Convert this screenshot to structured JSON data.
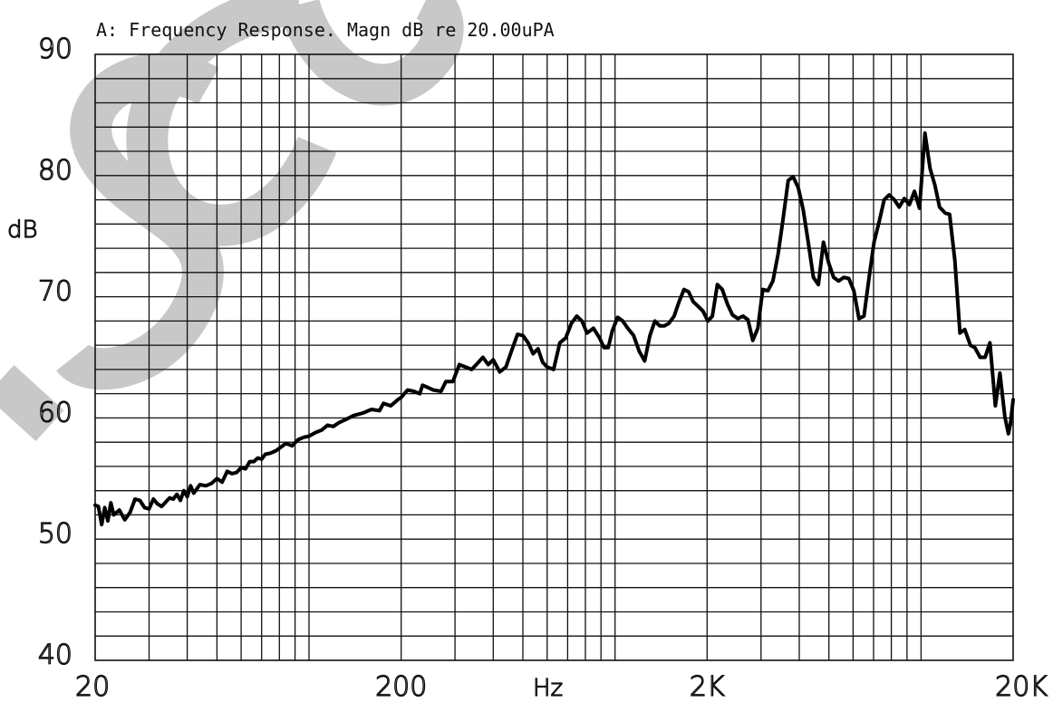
{
  "watermark": {
    "text": "ISCO",
    "color": "#c8c8c8"
  },
  "chart_data": {
    "type": "line",
    "title": "A: Frequency Response. Magn dB re 20.00uPA",
    "xlabel": "Hz",
    "ylabel": "dB",
    "xscale": "log",
    "xlim": [
      20,
      20000
    ],
    "ylim": [
      40,
      90
    ],
    "grid": true,
    "x_ticks": [
      {
        "value": 20,
        "label": "20"
      },
      {
        "value": 200,
        "label": "200"
      },
      {
        "value": 2000,
        "label": "2K"
      },
      {
        "value": 20000,
        "label": "20K"
      }
    ],
    "y_ticks": [
      {
        "value": 40,
        "label": "40"
      },
      {
        "value": 50,
        "label": "50"
      },
      {
        "value": 60,
        "label": "60"
      },
      {
        "value": 70,
        "label": "70"
      },
      {
        "value": 80,
        "label": "80"
      },
      {
        "value": 90,
        "label": "90"
      }
    ],
    "series": [
      {
        "color": "#000000",
        "points": [
          [
            20,
            52.8
          ],
          [
            20.5,
            52.7
          ],
          [
            21,
            51.2
          ],
          [
            21.5,
            52.6
          ],
          [
            22,
            51.5
          ],
          [
            22.5,
            53.0
          ],
          [
            23,
            52.0
          ],
          [
            24,
            52.4
          ],
          [
            25,
            51.6
          ],
          [
            26,
            52.2
          ],
          [
            27,
            53.3
          ],
          [
            28,
            53.2
          ],
          [
            29,
            52.6
          ],
          [
            30,
            52.5
          ],
          [
            31,
            53.3
          ],
          [
            32,
            52.9
          ],
          [
            33,
            52.7
          ],
          [
            35,
            53.4
          ],
          [
            36,
            53.3
          ],
          [
            37,
            53.7
          ],
          [
            38,
            53.2
          ],
          [
            39,
            54.0
          ],
          [
            40,
            53.5
          ],
          [
            41,
            54.4
          ],
          [
            42,
            53.8
          ],
          [
            44,
            54.5
          ],
          [
            46,
            54.4
          ],
          [
            48,
            54.6
          ],
          [
            50,
            55.0
          ],
          [
            52,
            54.7
          ],
          [
            54,
            55.6
          ],
          [
            56,
            55.4
          ],
          [
            58,
            55.5
          ],
          [
            60,
            55.9
          ],
          [
            62,
            55.8
          ],
          [
            64,
            56.4
          ],
          [
            66,
            56.4
          ],
          [
            68,
            56.7
          ],
          [
            70,
            56.6
          ],
          [
            72,
            57.0
          ],
          [
            75,
            57.1
          ],
          [
            78,
            57.3
          ],
          [
            80,
            57.5
          ],
          [
            84,
            57.9
          ],
          [
            88,
            57.7
          ],
          [
            92,
            58.2
          ],
          [
            96,
            58.4
          ],
          [
            100,
            58.5
          ],
          [
            105,
            58.8
          ],
          [
            110,
            59.0
          ],
          [
            115,
            59.4
          ],
          [
            120,
            59.3
          ],
          [
            125,
            59.6
          ],
          [
            130,
            59.8
          ],
          [
            140,
            60.2
          ],
          [
            150,
            60.4
          ],
          [
            160,
            60.7
          ],
          [
            170,
            60.6
          ],
          [
            175,
            61.2
          ],
          [
            185,
            61.0
          ],
          [
            195,
            61.5
          ],
          [
            200,
            61.7
          ],
          [
            210,
            62.3
          ],
          [
            220,
            62.2
          ],
          [
            230,
            62.0
          ],
          [
            235,
            62.7
          ],
          [
            245,
            62.5
          ],
          [
            255,
            62.3
          ],
          [
            270,
            62.2
          ],
          [
            280,
            63.0
          ],
          [
            295,
            63.0
          ],
          [
            310,
            64.4
          ],
          [
            325,
            64.2
          ],
          [
            340,
            64.0
          ],
          [
            355,
            64.5
          ],
          [
            370,
            65.0
          ],
          [
            385,
            64.4
          ],
          [
            400,
            64.8
          ],
          [
            420,
            63.8
          ],
          [
            440,
            64.2
          ],
          [
            460,
            65.6
          ],
          [
            480,
            66.9
          ],
          [
            500,
            66.8
          ],
          [
            520,
            66.2
          ],
          [
            540,
            65.3
          ],
          [
            560,
            65.7
          ],
          [
            580,
            64.6
          ],
          [
            600,
            64.2
          ],
          [
            630,
            64.0
          ],
          [
            660,
            66.2
          ],
          [
            690,
            66.6
          ],
          [
            720,
            67.8
          ],
          [
            750,
            68.4
          ],
          [
            780,
            68.0
          ],
          [
            810,
            67.0
          ],
          [
            850,
            67.4
          ],
          [
            890,
            66.6
          ],
          [
            920,
            65.8
          ],
          [
            950,
            65.8
          ],
          [
            980,
            67.2
          ],
          [
            1020,
            68.3
          ],
          [
            1060,
            68.0
          ],
          [
            1100,
            67.4
          ],
          [
            1150,
            66.8
          ],
          [
            1200,
            65.5
          ],
          [
            1250,
            64.7
          ],
          [
            1300,
            66.8
          ],
          [
            1350,
            68.0
          ],
          [
            1400,
            67.6
          ],
          [
            1450,
            67.6
          ],
          [
            1500,
            67.8
          ],
          [
            1560,
            68.4
          ],
          [
            1620,
            69.6
          ],
          [
            1680,
            70.6
          ],
          [
            1740,
            70.4
          ],
          [
            1800,
            69.6
          ],
          [
            1870,
            69.2
          ],
          [
            1940,
            68.8
          ],
          [
            2010,
            68.0
          ],
          [
            2080,
            68.4
          ],
          [
            2160,
            71.0
          ],
          [
            2240,
            70.6
          ],
          [
            2330,
            69.4
          ],
          [
            2420,
            68.5
          ],
          [
            2520,
            68.2
          ],
          [
            2620,
            68.4
          ],
          [
            2720,
            68.1
          ],
          [
            2820,
            66.4
          ],
          [
            2930,
            67.4
          ],
          [
            3040,
            70.6
          ],
          [
            3160,
            70.5
          ],
          [
            3280,
            71.3
          ],
          [
            3410,
            73.5
          ],
          [
            3540,
            76.4
          ],
          [
            3680,
            79.6
          ],
          [
            3820,
            79.9
          ],
          [
            3970,
            79.0
          ],
          [
            4120,
            77.2
          ],
          [
            4280,
            74.5
          ],
          [
            4450,
            71.6
          ],
          [
            4620,
            71.0
          ],
          [
            4800,
            74.5
          ],
          [
            4990,
            72.8
          ],
          [
            5180,
            71.6
          ],
          [
            5380,
            71.3
          ],
          [
            5590,
            71.6
          ],
          [
            5810,
            71.5
          ],
          [
            6030,
            70.5
          ],
          [
            6270,
            68.2
          ],
          [
            6510,
            68.4
          ],
          [
            6760,
            71.5
          ],
          [
            7020,
            74.5
          ],
          [
            7300,
            76.2
          ],
          [
            7580,
            78.0
          ],
          [
            7870,
            78.4
          ],
          [
            8180,
            78.0
          ],
          [
            8490,
            77.4
          ],
          [
            8820,
            78.1
          ],
          [
            9160,
            77.6
          ],
          [
            9520,
            78.7
          ],
          [
            9890,
            77.3
          ],
          [
            10300,
            83.5
          ],
          [
            10700,
            80.6
          ],
          [
            11100,
            79.2
          ],
          [
            11500,
            77.4
          ],
          [
            12000,
            76.9
          ],
          [
            12400,
            76.8
          ],
          [
            12900,
            73.0
          ],
          [
            13400,
            67.0
          ],
          [
            13900,
            67.3
          ],
          [
            14500,
            66.0
          ],
          [
            15000,
            65.8
          ],
          [
            15600,
            65.0
          ],
          [
            16200,
            65.0
          ],
          [
            16800,
            66.2
          ],
          [
            17500,
            61.0
          ],
          [
            18100,
            63.7
          ],
          [
            18800,
            60.1
          ],
          [
            19300,
            58.7
          ],
          [
            19600,
            59.5
          ],
          [
            19800,
            60.5
          ],
          [
            20000,
            61.5
          ]
        ]
      }
    ]
  }
}
